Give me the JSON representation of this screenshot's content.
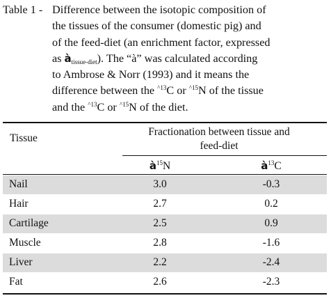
{
  "caption": {
    "label": "Table 1 - ",
    "lines": [
      "Difference between the isotopic composition of",
      "the tissues of the consumer (domestic pig) and",
      "of the feed-diet (an enrichment factor, expressed"
    ],
    "line4_prefix": "as ",
    "symbol": "à",
    "subscript": "tissue-diet",
    "line4_suffix": "). The “à” was calculated according",
    "line5": "to Ambrose & Norr (1993) and it means the",
    "line6_a": "difference between the ",
    "caret": "^",
    "sup13": "13",
    "line6_b": "C or ",
    "sup15": "15",
    "line6_c": "N of the tissue",
    "line7_a": "and the ",
    "line7_b": "C or ",
    "line7_c": "N of the diet."
  },
  "table": {
    "header_tissue": "Tissue",
    "header_group_line1": "Fractionation between tissue and",
    "header_group_line2": "feed-diet",
    "col_n_symbol": "à",
    "col_n_sup": "15",
    "col_n_letter": "N",
    "col_c_symbol": "à",
    "col_c_sup": "13",
    "col_c_letter": "C",
    "rows": [
      {
        "tissue": "Nail",
        "n15": "3.0",
        "c13": "-0.3"
      },
      {
        "tissue": "Hair",
        "n15": "2.7",
        "c13": "0.2"
      },
      {
        "tissue": "Cartilage",
        "n15": "2.5",
        "c13": "0.9"
      },
      {
        "tissue": "Muscle",
        "n15": "2.8",
        "c13": "-1.6"
      },
      {
        "tissue": "Liver",
        "n15": "2.2",
        "c13": "-2.4"
      },
      {
        "tissue": "Fat",
        "n15": "2.6",
        "c13": "-2.3"
      }
    ],
    "shade_color": "#dcdcdc"
  }
}
